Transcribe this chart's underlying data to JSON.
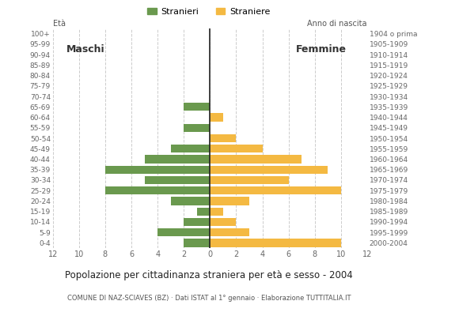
{
  "age_groups_bottom_to_top": [
    "0-4",
    "5-9",
    "10-14",
    "15-19",
    "20-24",
    "25-29",
    "30-34",
    "35-39",
    "40-44",
    "45-49",
    "50-54",
    "55-59",
    "60-64",
    "65-69",
    "70-74",
    "75-79",
    "80-84",
    "85-89",
    "90-94",
    "95-99",
    "100+"
  ],
  "birth_years_bottom_to_top": [
    "2000-2004",
    "1995-1999",
    "1990-1994",
    "1985-1989",
    "1980-1984",
    "1975-1979",
    "1970-1974",
    "1965-1969",
    "1960-1964",
    "1955-1959",
    "1950-1954",
    "1945-1949",
    "1940-1944",
    "1935-1939",
    "1930-1934",
    "1925-1929",
    "1920-1924",
    "1915-1919",
    "1910-1914",
    "1905-1909",
    "1904 o prima"
  ],
  "males_bottom_to_top": [
    2,
    4,
    2,
    1,
    3,
    8,
    5,
    8,
    5,
    3,
    0,
    2,
    0,
    2,
    0,
    0,
    0,
    0,
    0,
    0,
    0
  ],
  "females_bottom_to_top": [
    10,
    3,
    2,
    1,
    3,
    10,
    6,
    9,
    7,
    4,
    2,
    0,
    1,
    0,
    0,
    0,
    0,
    0,
    0,
    0,
    0
  ],
  "male_color": "#6a994e",
  "female_color": "#f4b942",
  "background_color": "#ffffff",
  "grid_color": "#cccccc",
  "title": "Popolazione per cittadinanza straniera per età e sesso - 2004",
  "subtitle": "COMUNE DI NAZ-SCIAVES (BZ) · Dati ISTAT al 1° gennaio · Elaborazione TUTTITALIA.IT",
  "legend_male": "Stranieri",
  "legend_female": "Straniere",
  "eta_label": "Età",
  "label_maschi": "Maschi",
  "label_femmine": "Femmine",
  "anno_nascita_label": "Anno di nascita",
  "xlim": 12
}
